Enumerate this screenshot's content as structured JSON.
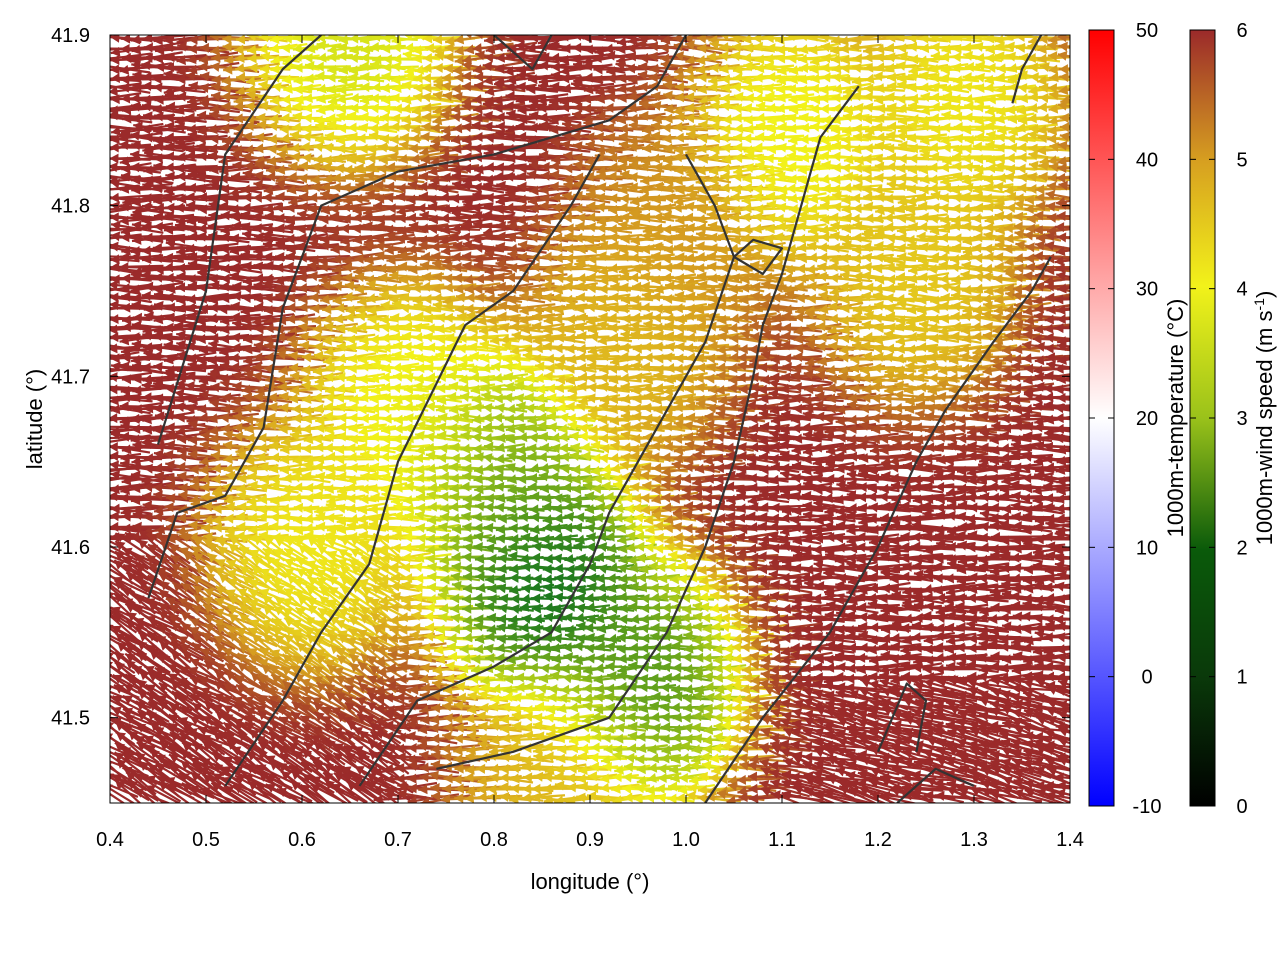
{
  "colors": {
    "wind_strong": "#9b2a2a",
    "wind_mid": "#d7a020",
    "wind_yellow": "#f2f21a",
    "wind_light_green": "#9ac21a",
    "wind_green": "#1e7a1e",
    "wind_dark_green": "#0a5a0a",
    "contour": "#333333"
  },
  "chart_data": {
    "type": "vector-field",
    "xlabel": "longitude (°)",
    "ylabel": "latitude (°)",
    "xlim": [
      0.4,
      1.4
    ],
    "ylim": [
      41.45,
      41.9
    ],
    "xticks": [
      "0.4",
      "0.5",
      "0.6",
      "0.7",
      "0.8",
      "0.9",
      "1.0",
      "1.1",
      "1.2",
      "1.3",
      "1.4"
    ],
    "yticks": [
      "41.5",
      "41.6",
      "41.7",
      "41.8",
      "41.9"
    ],
    "grid": false,
    "colorbars": [
      {
        "label": "1000m-temperature (°C)",
        "range": [
          -10,
          50
        ],
        "ticks": [
          "-10",
          "0",
          "10",
          "20",
          "30",
          "40",
          "50"
        ],
        "colors": [
          "#0000ff",
          "#ffffff",
          "#ff0000"
        ]
      },
      {
        "label": "1000m-wind speed (m s-1)",
        "label_main": "1000m-wind speed (m s",
        "label_sup": "-1",
        "label_close": ")",
        "range": [
          0,
          6
        ],
        "ticks": [
          "0",
          "1",
          "2",
          "3",
          "4",
          "5",
          "6"
        ],
        "colors": [
          "#000000",
          "#0a5a0a",
          "#1e7a1e",
          "#9ac21a",
          "#f2f21a",
          "#d7a020",
          "#9b2a2a"
        ]
      }
    ],
    "wind_speed_zones": [
      {
        "lon": 0.86,
        "lat": 41.58,
        "speed": 1.6
      },
      {
        "lon": 0.82,
        "lat": 41.64,
        "speed": 2.6
      },
      {
        "lon": 0.96,
        "lat": 41.52,
        "speed": 2.2
      },
      {
        "lon": 0.72,
        "lat": 41.68,
        "speed": 3.8
      },
      {
        "lon": 0.62,
        "lat": 41.6,
        "speed": 4.0
      },
      {
        "lon": 0.95,
        "lat": 41.72,
        "speed": 4.6
      },
      {
        "lon": 1.12,
        "lat": 41.84,
        "speed": 3.8
      },
      {
        "lon": 1.3,
        "lat": 41.86,
        "speed": 4.0
      },
      {
        "lon": 1.25,
        "lat": 41.76,
        "speed": 4.4
      },
      {
        "lon": 1.0,
        "lat": 41.78,
        "speed": 5.0
      },
      {
        "lon": 0.66,
        "lat": 41.9,
        "speed": 3.5
      },
      {
        "lon": 0.88,
        "lat": 41.46,
        "speed": 4.6
      }
    ],
    "wind_direction": "mostly from the east (arrows pointing west)",
    "contours": [
      [
        [
          0.45,
          41.66
        ],
        [
          0.5,
          41.75
        ],
        [
          0.52,
          41.83
        ],
        [
          0.58,
          41.88
        ],
        [
          0.62,
          41.9
        ]
      ],
      [
        [
          0.44,
          41.57
        ],
        [
          0.47,
          41.62
        ],
        [
          0.52,
          41.63
        ],
        [
          0.56,
          41.67
        ],
        [
          0.58,
          41.74
        ],
        [
          0.62,
          41.8
        ],
        [
          0.7,
          41.82
        ],
        [
          0.8,
          41.83
        ],
        [
          0.92,
          41.85
        ],
        [
          0.97,
          41.87
        ],
        [
          1.0,
          41.9
        ]
      ],
      [
        [
          0.52,
          41.46
        ],
        [
          0.58,
          41.51
        ],
        [
          0.62,
          41.55
        ],
        [
          0.67,
          41.59
        ],
        [
          0.7,
          41.65
        ],
        [
          0.77,
          41.73
        ],
        [
          0.82,
          41.75
        ],
        [
          0.88,
          41.8
        ],
        [
          0.91,
          41.83
        ]
      ],
      [
        [
          0.66,
          41.46
        ],
        [
          0.72,
          41.51
        ],
        [
          0.8,
          41.53
        ],
        [
          0.86,
          41.55
        ],
        [
          0.9,
          41.59
        ],
        [
          0.92,
          41.62
        ],
        [
          0.95,
          41.65
        ],
        [
          0.98,
          41.68
        ],
        [
          1.02,
          41.72
        ],
        [
          1.05,
          41.77
        ],
        [
          1.03,
          41.8
        ],
        [
          1.0,
          41.83
        ]
      ],
      [
        [
          0.74,
          41.47
        ],
        [
          0.82,
          41.48
        ],
        [
          0.92,
          41.5
        ],
        [
          0.98,
          41.55
        ],
        [
          1.02,
          41.6
        ],
        [
          1.05,
          41.65
        ],
        [
          1.07,
          41.7
        ],
        [
          1.08,
          41.73
        ],
        [
          1.1,
          41.76
        ],
        [
          1.12,
          41.8
        ],
        [
          1.14,
          41.84
        ],
        [
          1.18,
          41.87
        ]
      ],
      [
        [
          1.02,
          41.45
        ],
        [
          1.08,
          41.5
        ],
        [
          1.15,
          41.55
        ],
        [
          1.2,
          41.6
        ],
        [
          1.24,
          41.65
        ],
        [
          1.27,
          41.68
        ],
        [
          1.32,
          41.72
        ],
        [
          1.36,
          41.75
        ],
        [
          1.38,
          41.77
        ]
      ],
      [
        [
          1.22,
          41.45
        ],
        [
          1.26,
          41.47
        ],
        [
          1.3,
          41.46
        ]
      ],
      [
        [
          1.2,
          41.48
        ],
        [
          1.23,
          41.52
        ],
        [
          1.25,
          41.51
        ],
        [
          1.24,
          41.48
        ]
      ],
      [
        [
          1.34,
          41.86
        ],
        [
          1.35,
          41.88
        ],
        [
          1.37,
          41.9
        ]
      ],
      [
        [
          1.05,
          41.77
        ],
        [
          1.08,
          41.76
        ],
        [
          1.1,
          41.775
        ],
        [
          1.07,
          41.78
        ],
        [
          1.05,
          41.77
        ]
      ],
      [
        [
          0.8,
          41.9
        ],
        [
          0.84,
          41.88
        ],
        [
          0.86,
          41.9
        ]
      ]
    ]
  }
}
